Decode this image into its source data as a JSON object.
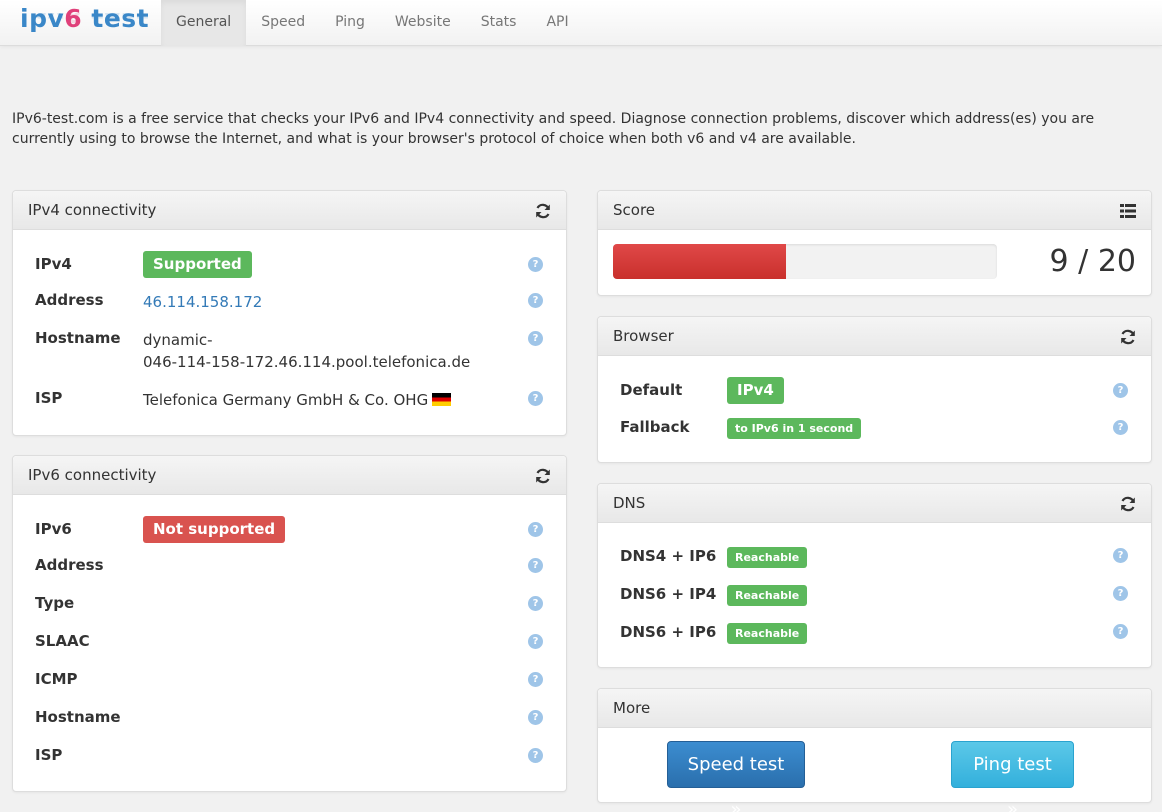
{
  "brand": {
    "prefix": "ipv",
    "six": "6",
    "suffix": " test"
  },
  "nav": {
    "items": [
      {
        "label": "General",
        "active": true
      },
      {
        "label": "Speed"
      },
      {
        "label": "Ping"
      },
      {
        "label": "Website"
      },
      {
        "label": "Stats"
      },
      {
        "label": "API"
      }
    ]
  },
  "intro": "IPv6-test.com is a free service that checks your IPv6 and IPv4 connectivity and speed. Diagnose connection problems, discover which address(es) you are currently using to browse the Internet, and what is your browser's protocol of choice when both v6 and v4 are available.",
  "ipv4": {
    "title": "IPv4 connectivity",
    "rows": {
      "ipv4": {
        "label": "IPv4",
        "value": "Supported"
      },
      "address": {
        "label": "Address",
        "value": "46.114.158.172"
      },
      "hostname": {
        "label": "Hostname",
        "value_line1": "dynamic-",
        "value_line2": "046-114-158-172.46.114.pool.telefonica.de"
      },
      "isp": {
        "label": "ISP",
        "value": "Telefonica Germany GmbH & Co. OHG"
      }
    }
  },
  "ipv6": {
    "title": "IPv6 connectivity",
    "rows": {
      "ipv6": {
        "label": "IPv6",
        "value": "Not supported"
      },
      "address": {
        "label": "Address"
      },
      "type": {
        "label": "Type"
      },
      "slaac": {
        "label": "SLAAC"
      },
      "icmp": {
        "label": "ICMP"
      },
      "hostname": {
        "label": "Hostname"
      },
      "isp": {
        "label": "ISP"
      }
    }
  },
  "score": {
    "title": "Score",
    "value": 9,
    "max": 20,
    "text": "9 / 20"
  },
  "browser": {
    "title": "Browser",
    "default": {
      "label": "Default",
      "value": "IPv4"
    },
    "fallback": {
      "label": "Fallback",
      "value": "to IPv6 in 1 second"
    }
  },
  "dns": {
    "title": "DNS",
    "rows": [
      {
        "label": "DNS4 + IP6",
        "value": "Reachable"
      },
      {
        "label": "DNS6 + IP4",
        "value": "Reachable"
      },
      {
        "label": "DNS6 + IP6",
        "value": "Reachable"
      }
    ]
  },
  "more": {
    "title": "More",
    "speed_button": "Speed test »",
    "ping_button": "Ping test »"
  },
  "help_glyph": "?",
  "colors": {
    "success": "#5cb85c",
    "danger": "#d9534f",
    "link": "#337ab7",
    "brand_blue": "#3a87c8",
    "brand_pink": "#e0407a"
  }
}
